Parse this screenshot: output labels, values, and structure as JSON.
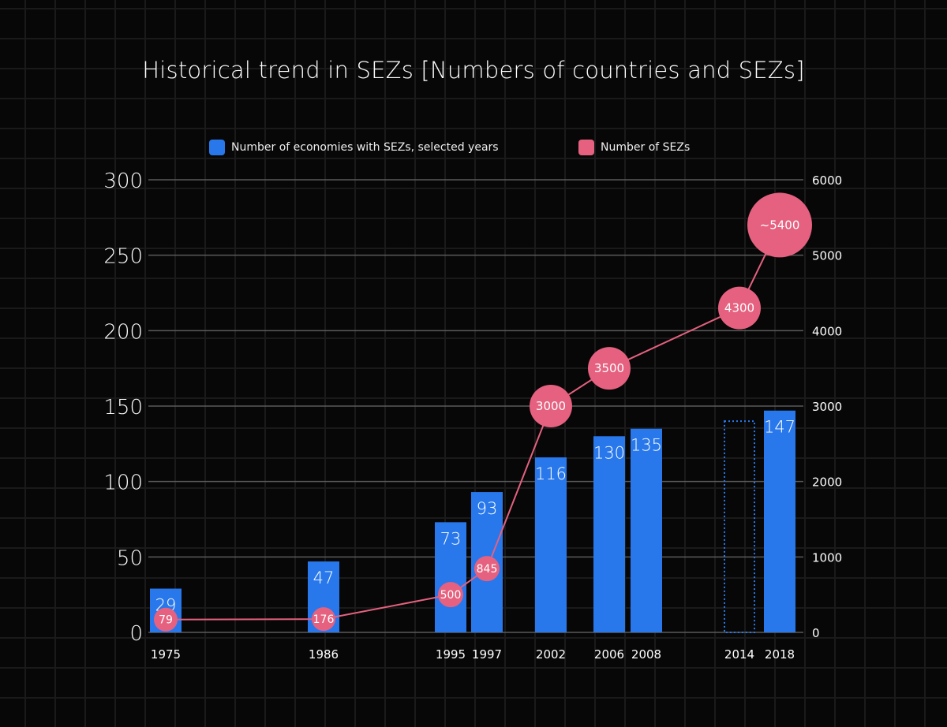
{
  "colors": {
    "bar": "#2878EC",
    "bubble": "#E5617F",
    "line": "#E5617F",
    "grid": "#555555"
  },
  "chart_data": {
    "type": "bar",
    "title": "Historical trend in SEZs [Numbers of countries and SEZs]",
    "legend": [
      {
        "label": "Number of economies with SEZs, selected years",
        "color": "#2878EC"
      },
      {
        "label": "Number of SEZs",
        "color": "#E5617F"
      }
    ],
    "legend_position": "top-center",
    "categories": [
      "1975",
      "1986",
      "1995",
      "1997",
      "2002",
      "2006",
      "2008",
      "2014",
      "2018"
    ],
    "series": [
      {
        "name": "Number of economies with SEZs, selected years",
        "type": "bar",
        "axis": "left",
        "values": [
          29,
          47,
          73,
          93,
          116,
          130,
          135,
          null,
          147
        ],
        "labels": [
          "29",
          "47",
          "73",
          "93",
          "116",
          "130",
          "135",
          "",
          "147"
        ],
        "placeholder": {
          "category": "2014",
          "style": "dotted-outline",
          "approx_value": 140
        }
      },
      {
        "name": "Number of SEZs",
        "type": "line-bubble",
        "axis": "right",
        "values": [
          79,
          176,
          500,
          845,
          3000,
          3500,
          null,
          4300,
          5400
        ],
        "labels": [
          "79",
          "176",
          "500",
          "845",
          "3000",
          "",
          "",
          "4300",
          "~5400"
        ],
        "point_categories": [
          "1975",
          "1986",
          "1995",
          "1997",
          "2002",
          "2006",
          "2014",
          "2018"
        ],
        "point_values": [
          79,
          176,
          500,
          845,
          3000,
          3500,
          4300,
          5400
        ],
        "point_labels": [
          "79",
          "176",
          "500",
          "845",
          "3000",
          "3500",
          "4300",
          "~5400"
        ]
      }
    ],
    "left_axis": {
      "min": 0,
      "max": 300,
      "ticks": [
        "0",
        "50",
        "100",
        "150",
        "200",
        "250",
        "300"
      ]
    },
    "right_axis": {
      "min": 0,
      "max": 6000,
      "ticks": [
        "0",
        "1000",
        "2000",
        "3000",
        "4000",
        "5000",
        "6000"
      ]
    },
    "grid": true,
    "xlabel": "",
    "ylabel": ""
  }
}
